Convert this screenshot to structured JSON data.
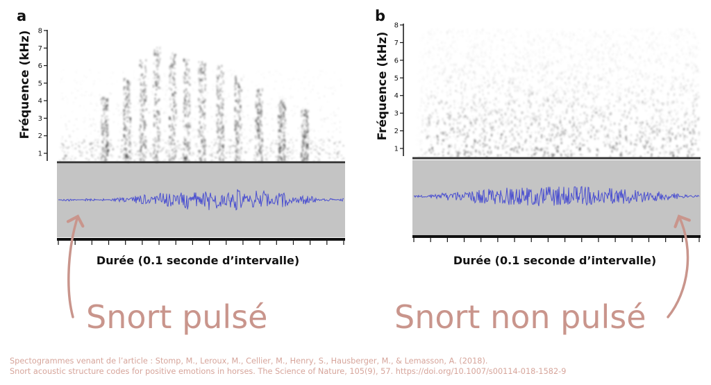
{
  "panels": [
    {
      "letter": "a",
      "ylabel": "Fréquence (kHz)",
      "yticks": [
        "1",
        "2",
        "3",
        "4",
        "5",
        "6",
        "7",
        "8"
      ],
      "xlabel": "Durée (0.1 seconde d’intervalle)",
      "annotation": "Snort pulsé"
    },
    {
      "letter": "b",
      "ylabel": "Fréquence (kHz)",
      "yticks": [
        "1",
        "2",
        "3",
        "4",
        "5",
        "6",
        "7",
        "8"
      ],
      "xlabel": "Durée (0.1 seconde d’intervalle)",
      "annotation": "Snort non pulsé"
    }
  ],
  "caption": {
    "line1": "Spectogrammes venant de l’article : Stomp, M., Leroux, M., Cellier, M., Henry, S., Hausberger, M., & Lemasson, A. (2018).",
    "line2": "Snort acoustic structure codes for positive emotions in horses. The Science of Nature, 105(9), 57. https://doi.org/10.1007/s00114-018-1582-9"
  },
  "colors": {
    "waveform": "#4a4fd0",
    "oscillogram_bg": "#c4c4c4",
    "annotation": "#c9958c",
    "caption": "#d6a49a"
  }
}
